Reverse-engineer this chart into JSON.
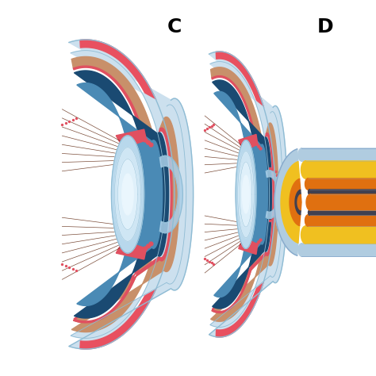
{
  "bg_color": "#ffffff",
  "label_C": "C",
  "label_D": "D",
  "colors": {
    "sclera_white": "#cce0ee",
    "sclera_outline": "#8fbcd4",
    "choroid_blue_dark": "#1a4a72",
    "choroid_blue_mid": "#2a6a9e",
    "vitreous_blue": "#4a8ab5",
    "iris_red": "#e05060",
    "lens_outer": "#b8d8ec",
    "lens_mid": "#cfe6f4",
    "lens_inner": "#dff0fa",
    "lens_core": "#eaf6fd",
    "muscle_brown": "#5a2008",
    "retina_tan": "#c8906a",
    "cornea_blue": "#aacfe8",
    "red_blob": "#e05060",
    "epi_red": "#e85060",
    "layer_yellow": "#f0c020",
    "layer_orange": "#e07010",
    "layer_dark_orange": "#c04000",
    "layer_gray": "#404050",
    "layer_light_blue": "#b0cce0"
  }
}
